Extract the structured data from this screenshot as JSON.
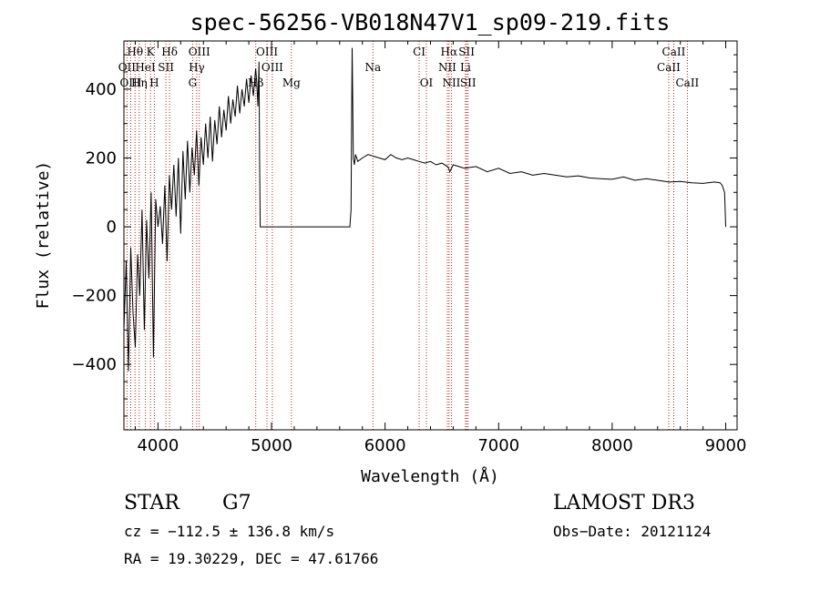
{
  "chart_data": {
    "type": "line",
    "title": "spec-56256-VB018N47V1_sp09-219.fits",
    "xlabel": "Wavelength (Å)",
    "ylabel": "Flux (relative)",
    "xlim": [
      3700,
      9100
    ],
    "ylim": [
      -590,
      540
    ],
    "xticks": [
      4000,
      5000,
      6000,
      7000,
      8000,
      9000
    ],
    "yticks": [
      -400,
      -200,
      0,
      200,
      400
    ],
    "xtick_labels": [
      "4000",
      "5000",
      "6000",
      "7000",
      "8000",
      "9000"
    ],
    "ytick_labels": [
      "−400",
      "−200",
      "0",
      "200",
      "400"
    ],
    "series": [
      {
        "name": "flux",
        "x": [
          3700,
          3720,
          3740,
          3760,
          3780,
          3800,
          3820,
          3840,
          3860,
          3880,
          3900,
          3920,
          3940,
          3960,
          3980,
          4000,
          4020,
          4040,
          4060,
          4080,
          4100,
          4120,
          4140,
          4160,
          4180,
          4200,
          4220,
          4240,
          4260,
          4280,
          4300,
          4320,
          4340,
          4360,
          4380,
          4400,
          4420,
          4440,
          4460,
          4480,
          4500,
          4520,
          4540,
          4560,
          4580,
          4600,
          4620,
          4640,
          4660,
          4680,
          4700,
          4720,
          4740,
          4760,
          4780,
          4800,
          4820,
          4840,
          4860,
          4870,
          4880,
          4890,
          4895,
          4900,
          5000,
          5200,
          5400,
          5600,
          5690,
          5700,
          5705,
          5710,
          5720,
          5730,
          5740,
          5760,
          5800,
          5850,
          5900,
          5950,
          6000,
          6050,
          6100,
          6150,
          6200,
          6250,
          6300,
          6350,
          6400,
          6450,
          6500,
          6550,
          6560,
          6570,
          6600,
          6650,
          6700,
          6800,
          6900,
          7000,
          7100,
          7200,
          7300,
          7400,
          7500,
          7600,
          7700,
          7800,
          7900,
          8000,
          8100,
          8200,
          8300,
          8400,
          8500,
          8600,
          8700,
          8800,
          8900,
          8950,
          8970,
          8990,
          9000
        ],
        "y": [
          -300,
          -100,
          -420,
          -60,
          -250,
          -350,
          -80,
          -200,
          50,
          -300,
          20,
          -150,
          100,
          -380,
          80,
          0,
          60,
          -50,
          120,
          -100,
          150,
          50,
          180,
          30,
          200,
          -20,
          220,
          80,
          250,
          100,
          230,
          150,
          280,
          120,
          260,
          180,
          300,
          200,
          320,
          190,
          310,
          240,
          350,
          260,
          340,
          280,
          380,
          300,
          370,
          320,
          410,
          330,
          400,
          350,
          430,
          360,
          440,
          380,
          460,
          420,
          350,
          480,
          200,
          0,
          0,
          0,
          0,
          0,
          0,
          50,
          300,
          520,
          200,
          180,
          210,
          190,
          200,
          210,
          205,
          200,
          195,
          210,
          200,
          195,
          200,
          195,
          190,
          185,
          190,
          180,
          185,
          175,
          170,
          160,
          180,
          175,
          170,
          175,
          160,
          170,
          155,
          160,
          150,
          155,
          150,
          145,
          148,
          142,
          140,
          138,
          145,
          135,
          140,
          135,
          130,
          132,
          128,
          126,
          130,
          128,
          120,
          100,
          0
        ]
      }
    ],
    "spectral_lines": [
      {
        "label": "Hθ",
        "wl": 3798,
        "row": 1
      },
      {
        "label": "K",
        "wl": 3934,
        "row": 1
      },
      {
        "label": "Hδ",
        "wl": 4102,
        "row": 1
      },
      {
        "label": "OIII",
        "wl": 4364,
        "row": 1
      },
      {
        "label": "OIII",
        "wl": 4960,
        "row": 1
      },
      {
        "label": "CI",
        "wl": 6300,
        "row": 1
      },
      {
        "label": "Hα",
        "wl": 6563,
        "row": 1
      },
      {
        "label": "SII",
        "wl": 6718,
        "row": 1
      },
      {
        "label": "CaII",
        "wl": 8542,
        "row": 1
      },
      {
        "label": "OII",
        "wl": 3727,
        "row": 2
      },
      {
        "label": "HeI",
        "wl": 3889,
        "row": 2
      },
      {
        "label": "SII",
        "wl": 4070,
        "row": 2
      },
      {
        "label": "Hγ",
        "wl": 4341,
        "row": 2
      },
      {
        "label": "OIII",
        "wl": 5007,
        "row": 2
      },
      {
        "label": "Na",
        "wl": 5893,
        "row": 2
      },
      {
        "label": "NII",
        "wl": 6548,
        "row": 2
      },
      {
        "label": "Li",
        "wl": 6708,
        "row": 2
      },
      {
        "label": "CaII",
        "wl": 8498,
        "row": 2
      },
      {
        "label": "OIII",
        "wl": 3760,
        "row": 3
      },
      {
        "label": "Hη",
        "wl": 3835,
        "row": 3
      },
      {
        "label": "H",
        "wl": 3968,
        "row": 3
      },
      {
        "label": "G",
        "wl": 4305,
        "row": 3
      },
      {
        "label": "Hβ",
        "wl": 4861,
        "row": 3
      },
      {
        "label": "Mg",
        "wl": 5175,
        "row": 3
      },
      {
        "label": "OI",
        "wl": 6364,
        "row": 3
      },
      {
        "label": "NII",
        "wl": 6584,
        "row": 3
      },
      {
        "label": "SII",
        "wl": 6731,
        "row": 3
      },
      {
        "label": "CaII",
        "wl": 8662,
        "row": 3
      }
    ]
  },
  "info": {
    "class": "STAR",
    "subclass": "G7",
    "survey": "LAMOST DR3",
    "cz": "cz = −112.5 ± 136.8 km/s",
    "obs_date": "Obs−Date: 20121124",
    "radec": "RA =  19.30229, DEC =  47.61766"
  }
}
